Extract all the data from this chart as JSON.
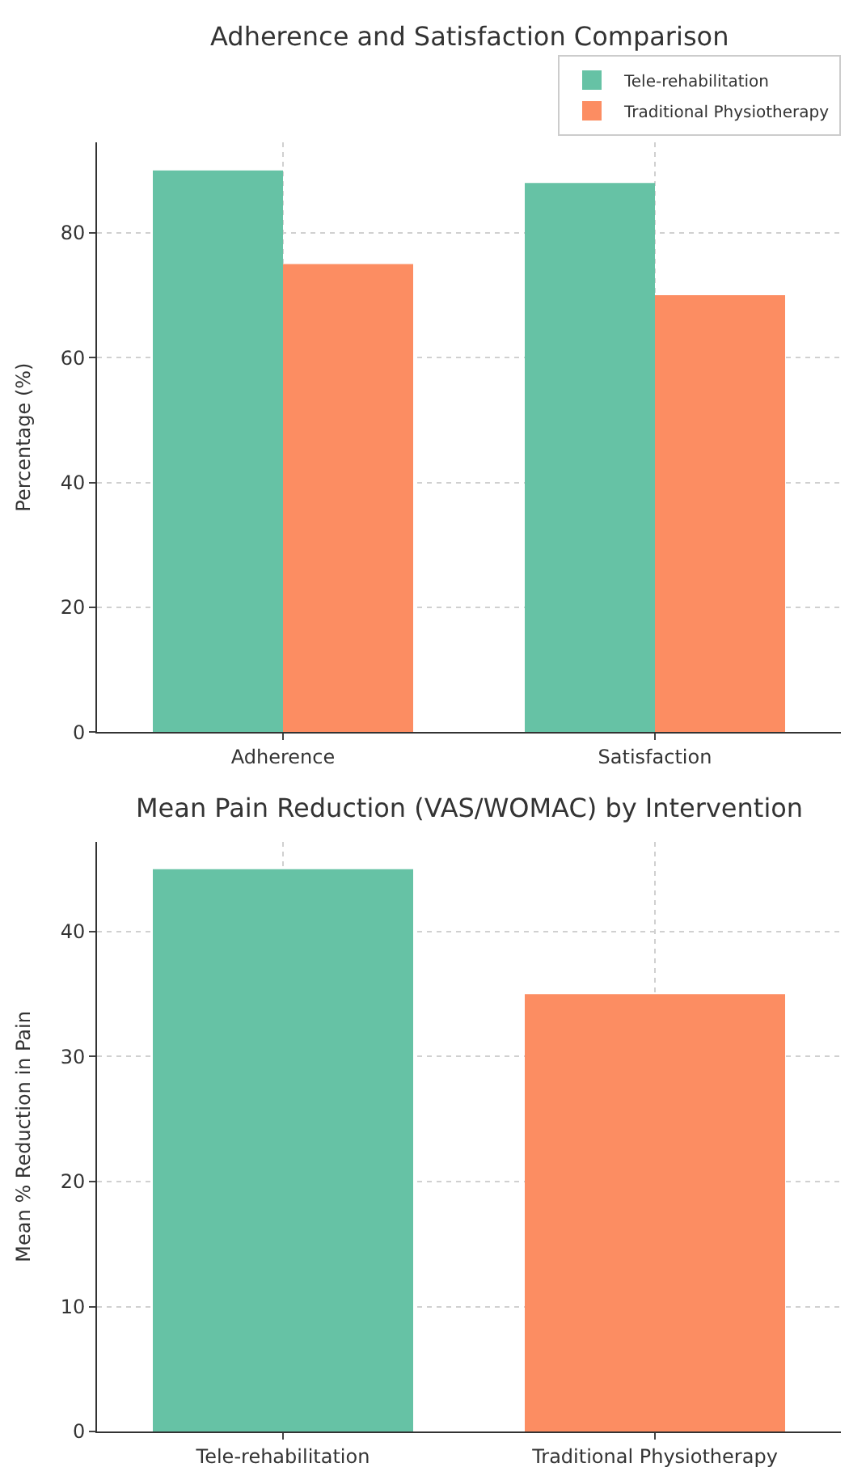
{
  "chart_data": [
    {
      "type": "bar",
      "title": "Adherence and Satisfaction Comparison",
      "ylabel": "Percentage (%)",
      "categories": [
        "Adherence",
        "Satisfaction"
      ],
      "series": [
        {
          "name": "Tele-rehabilitation",
          "color": "#66c2a5",
          "values": [
            90,
            88
          ]
        },
        {
          "name": "Traditional Physiotherapy",
          "color": "#fc8d62",
          "values": [
            75,
            70
          ]
        }
      ],
      "ylim": [
        0,
        94.5
      ],
      "yticks": [
        0,
        20,
        40,
        60,
        80
      ],
      "grid": true,
      "legend": "top right"
    },
    {
      "type": "bar",
      "title": "Mean Pain Reduction (VAS/WOMAC) by Intervention",
      "ylabel": "Mean % Reduction in Pain",
      "categories": [
        "Tele-rehabilitation",
        "Traditional Physiotherapy"
      ],
      "values": [
        45,
        35
      ],
      "colors": [
        "#66c2a5",
        "#fc8d62"
      ],
      "ylim": [
        0,
        47.2
      ],
      "yticks": [
        0,
        10,
        20,
        30,
        40
      ],
      "grid": true
    }
  ]
}
